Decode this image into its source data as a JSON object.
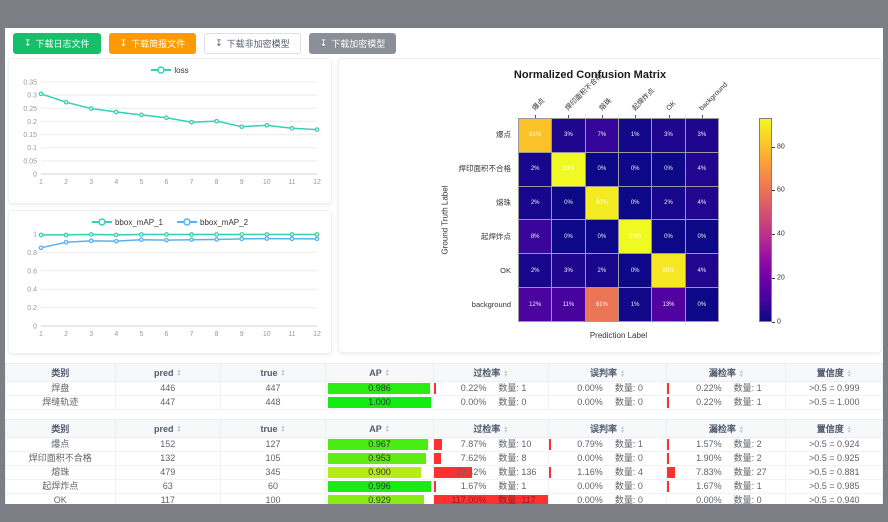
{
  "toolbar": {
    "buttons": [
      {
        "label": "下载日志文件",
        "icon": "download-icon",
        "style": "green"
      },
      {
        "label": "下载简报文件",
        "icon": "download-icon",
        "style": "orange"
      },
      {
        "label": "下载非加密模型",
        "icon": "download-icon",
        "style": "plain"
      },
      {
        "label": "下载加密模型",
        "icon": "download-icon",
        "style": "gray"
      }
    ]
  },
  "colors": {
    "button_green": "#19be6b",
    "button_orange": "#ff9900",
    "button_gray": "#8a8f98",
    "series_teal": "#38cfb2",
    "series_blue": "#58b1f2",
    "rate_bar_red": "#ff3030",
    "frame_gray": "#7d7d85"
  },
  "chart_data": [
    {
      "id": "loss",
      "type": "line",
      "legend_position": "top",
      "x": [
        1,
        2,
        3,
        4,
        5,
        6,
        7,
        8,
        9,
        10,
        11,
        12
      ],
      "series": [
        {
          "name": "loss",
          "color": "#38cfb2",
          "values": [
            0.305,
            0.273,
            0.249,
            0.236,
            0.225,
            0.214,
            0.197,
            0.201,
            0.18,
            0.185,
            0.174,
            0.169
          ]
        }
      ],
      "ylim": [
        0,
        0.35
      ],
      "yticks": [
        0,
        0.05,
        0.1,
        0.15,
        0.2,
        0.25,
        0.3,
        0.35
      ],
      "grid": true
    },
    {
      "id": "bbox_map",
      "type": "line",
      "legend_position": "top",
      "x": [
        1,
        2,
        3,
        4,
        5,
        6,
        7,
        8,
        9,
        10,
        11,
        12
      ],
      "series": [
        {
          "name": "bbox_mAP_1",
          "color": "#38cfb2",
          "values": [
            0.99,
            0.99,
            0.995,
            0.99,
            0.995,
            0.995,
            0.995,
            0.995,
            0.995,
            0.995,
            0.995,
            0.995
          ]
        },
        {
          "name": "bbox_mAP_2",
          "color": "#58b1f2",
          "values": [
            0.85,
            0.91,
            0.925,
            0.922,
            0.938,
            0.933,
            0.938,
            0.94,
            0.947,
            0.95,
            0.948,
            0.947
          ]
        }
      ],
      "ylim": [
        0,
        1
      ],
      "yticks": [
        0,
        0.2,
        0.4,
        0.6,
        0.8,
        1
      ],
      "grid": true
    },
    {
      "id": "confusion_matrix",
      "type": "heatmap",
      "title": "Normalized Confusion Matrix",
      "xlabel": "Prediction Label",
      "ylabel": "Ground Truth Label",
      "labels": [
        "爆点",
        "焊印面积不合格",
        "熔珠",
        "起焊炸点",
        "OK",
        "background"
      ],
      "unit": "%",
      "matrix": [
        [
          81,
          3,
          7,
          1,
          3,
          3
        ],
        [
          2,
          93,
          0,
          0,
          0,
          4
        ],
        [
          2,
          0,
          90,
          0,
          2,
          4
        ],
        [
          8,
          0,
          0,
          93,
          0,
          0
        ],
        [
          2,
          3,
          2,
          0,
          89,
          4
        ],
        [
          12,
          11,
          61,
          1,
          13,
          0
        ]
      ],
      "colormap": "plasma",
      "vmax": 93,
      "colorbar_ticks": [
        0,
        20,
        40,
        60,
        80
      ]
    }
  ],
  "table_headers": [
    {
      "key": "class",
      "label": "类别",
      "sortable": false
    },
    {
      "key": "pred",
      "label": "pred",
      "sortable": true
    },
    {
      "key": "true",
      "label": "true",
      "sortable": true
    },
    {
      "key": "ap",
      "label": "AP",
      "sortable": true
    },
    {
      "key": "overkill",
      "label": "过检率",
      "sortable": true
    },
    {
      "key": "misjudge",
      "label": "误判率",
      "sortable": true
    },
    {
      "key": "miss",
      "label": "漏检率",
      "sortable": true
    },
    {
      "key": "confidence",
      "label": "置信度",
      "sortable": true
    }
  ],
  "count_label": "数量:",
  "tables": [
    {
      "rows": [
        {
          "cls": "焊盘",
          "pred": "446",
          "true": "447",
          "ap": "0.986",
          "gj": [
            "0.22%",
            "1"
          ],
          "wp": [
            "0.00%",
            "0"
          ],
          "lj": [
            "0.22%",
            "1"
          ],
          "conf": ">0.5 = 0.999"
        },
        {
          "cls": "焊缝轨迹",
          "pred": "447",
          "true": "448",
          "ap": "1.000",
          "gj": [
            "0.00%",
            "0"
          ],
          "wp": [
            "0.00%",
            "0"
          ],
          "lj": [
            "0.22%",
            "1"
          ],
          "conf": ">0.5 = 1.000"
        }
      ]
    },
    {
      "rows": [
        {
          "cls": "爆点",
          "pred": "152",
          "true": "127",
          "ap": "0.967",
          "gj": [
            "7.87%",
            "10"
          ],
          "wp": [
            "0.79%",
            "1"
          ],
          "lj": [
            "1.57%",
            "2"
          ],
          "conf": ">0.5 = 0.924"
        },
        {
          "cls": "焊印面积不合格",
          "pred": "132",
          "true": "105",
          "ap": "0.953",
          "gj": [
            "7.62%",
            "8"
          ],
          "wp": [
            "0.00%",
            "0"
          ],
          "lj": [
            "1.90%",
            "2"
          ],
          "conf": ">0.5 = 0.925"
        },
        {
          "cls": "熔珠",
          "pred": "479",
          "true": "345",
          "ap": "0.900",
          "gj": [
            "39.42%",
            "136"
          ],
          "wp": [
            "1.16%",
            "4"
          ],
          "lj": [
            "7.83%",
            "27"
          ],
          "conf": ">0.5 = 0.881"
        },
        {
          "cls": "起焊炸点",
          "pred": "63",
          "true": "60",
          "ap": "0.996",
          "gj": [
            "1.67%",
            "1"
          ],
          "wp": [
            "0.00%",
            "0"
          ],
          "lj": [
            "1.67%",
            "1"
          ],
          "conf": ">0.5 = 0.985"
        },
        {
          "cls": "OK",
          "pred": "117",
          "true": "100",
          "ap": "0.929",
          "gj": [
            "117.00%",
            "117"
          ],
          "wp": [
            "0.00%",
            "0"
          ],
          "lj": [
            "0.00%",
            "0"
          ],
          "conf": ">0.5 = 0.940"
        }
      ]
    }
  ]
}
